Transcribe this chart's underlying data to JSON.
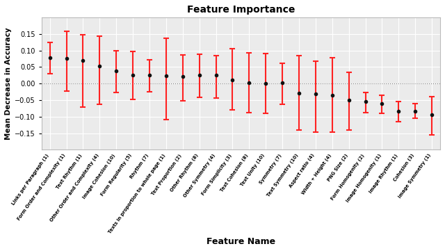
{
  "title": "Feature Importance",
  "xlabel": "Feature Name",
  "ylabel": "Mean Decrease in Accuracy",
  "features": [
    "Links per Paragraph (1)",
    "Form Order and Complexity (1)",
    "Text Rhythm (1)",
    "Other Order and Complexity (4)",
    "Image Cohesion (10)",
    "Form Regularity (5)",
    "Rhythm (7)",
    "Texts in proportion to whole page (1)",
    "Text Proportion (2)",
    "Other Rhythm (8)",
    "Other Symmetry (4)",
    "Form Simplicity (3)",
    "Text Cohesion (8)",
    "Text Unity (10)",
    "Symmetry (7)",
    "Text Symmetry (10)",
    "Aspect ratio (4)",
    "Width + Height (4)",
    "PNG Size (2)",
    "Form Homogenity (2)",
    "Image Homogenity (1)",
    "Image Rhythm (1)",
    "Cohesion (3)",
    "Image Symmetry (1)"
  ],
  "means": [
    0.077,
    0.075,
    0.069,
    0.052,
    0.038,
    0.026,
    0.025,
    0.024,
    0.022,
    0.026,
    0.025,
    0.01,
    0.003,
    0.001,
    0.002,
    -0.028,
    -0.032,
    -0.035,
    -0.05,
    -0.055,
    -0.06,
    -0.083,
    -0.083,
    -0.095
  ],
  "yerr_lower": [
    0.048,
    0.098,
    0.14,
    0.115,
    0.065,
    0.073,
    0.05,
    0.132,
    0.075,
    0.068,
    0.068,
    0.09,
    0.09,
    0.09,
    0.065,
    0.112,
    0.115,
    0.112,
    0.09,
    0.032,
    0.03,
    0.032,
    0.022,
    0.06
  ],
  "yerr_upper": [
    0.048,
    0.082,
    0.078,
    0.092,
    0.06,
    0.07,
    0.047,
    0.112,
    0.065,
    0.062,
    0.06,
    0.095,
    0.09,
    0.09,
    0.06,
    0.112,
    0.1,
    0.112,
    0.083,
    0.028,
    0.025,
    0.028,
    0.022,
    0.055
  ],
  "dot_color": "#111111",
  "error_color": "#ff2222",
  "background_color": "#ebebeb",
  "grid_color": "#ffffff",
  "ylim": [
    -0.2,
    0.2
  ],
  "yticks": [
    -0.15,
    -0.1,
    -0.05,
    0.0,
    0.05,
    0.1,
    0.15
  ]
}
